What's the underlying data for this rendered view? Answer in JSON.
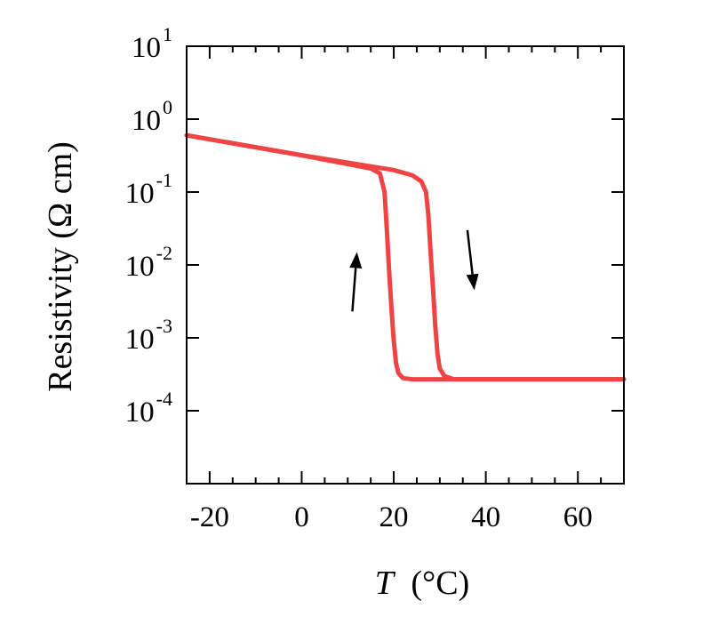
{
  "chart_data": {
    "type": "line",
    "xlabel": "T",
    "xlabel_unit": "(°C)",
    "ylabel": "Resistivity (Ω cm)",
    "xlim": [
      -25,
      70
    ],
    "ylim_log10": [
      -5,
      1
    ],
    "y_scale": "log",
    "x_ticks": [
      -20,
      0,
      20,
      40,
      60
    ],
    "x_tick_labels": [
      "-20",
      "0",
      "20",
      "40",
      "60"
    ],
    "y_ticks": [
      -4,
      -3,
      -2,
      -1,
      0,
      1
    ],
    "y_tick_base": "10",
    "y_tick_exponents": [
      "-4",
      "-3",
      "-2",
      "-1",
      "0",
      "1"
    ],
    "line_color": "#ee4444",
    "series": [
      {
        "values_x": [
          -25,
          0,
          15,
          17,
          18,
          18.5,
          19,
          19.5,
          20,
          20.5,
          21,
          22,
          24,
          30,
          50,
          70
        ],
        "values_y": [
          0.6,
          0.32,
          0.21,
          0.18,
          0.1,
          0.03,
          0.008,
          0.0025,
          0.0009,
          0.00045,
          0.00033,
          0.00028,
          0.00027,
          0.00027,
          0.00027,
          0.00027
        ]
      },
      {
        "values_x": [
          -25,
          0,
          20,
          24,
          26,
          27,
          27.5,
          28,
          28.5,
          29,
          29.5,
          30,
          31,
          33,
          40,
          70
        ],
        "values_y": [
          0.6,
          0.32,
          0.2,
          0.17,
          0.14,
          0.1,
          0.05,
          0.015,
          0.005,
          0.0015,
          0.0006,
          0.00038,
          0.0003,
          0.00027,
          0.00027,
          0.00027
        ]
      }
    ],
    "arrows": [
      {
        "direction": "up",
        "x_from": 11,
        "x_to": 12,
        "y_from": 0.0023,
        "y_to": 0.015
      },
      {
        "direction": "down",
        "x_from": 36,
        "x_to": 37.5,
        "y_from": 0.03,
        "y_to": 0.0045
      }
    ]
  }
}
